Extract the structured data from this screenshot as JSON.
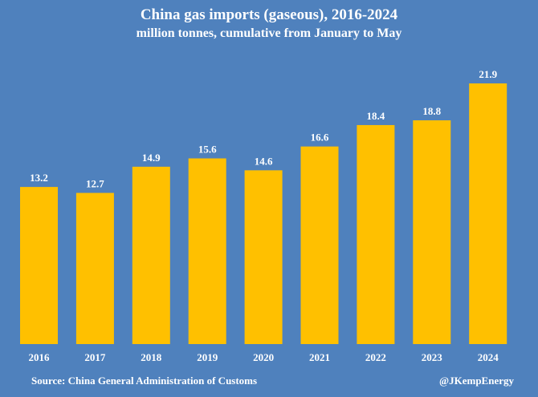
{
  "chart_data": {
    "type": "bar",
    "title": "China gas imports (gaseous), 2016-2024",
    "subtitle": "million tonnes, cumulative from January to May",
    "categories": [
      "2016",
      "2017",
      "2018",
      "2019",
      "2020",
      "2021",
      "2022",
      "2023",
      "2024"
    ],
    "values": [
      13.2,
      12.7,
      14.9,
      15.6,
      14.6,
      16.6,
      18.4,
      18.8,
      21.9
    ],
    "data_labels": [
      "13.2",
      "12.7",
      "14.9",
      "15.6",
      "14.6",
      "16.6",
      "18.4",
      "18.8",
      "21.9"
    ],
    "xlabel": "",
    "ylabel": "",
    "ylim": [
      0,
      21.9
    ],
    "grid": false,
    "bar_color": "#ffc000",
    "background_color": "#4f81bd"
  },
  "footer": {
    "source": "Source: China General Administration of Customs",
    "credit": "@JKempEnergy"
  }
}
